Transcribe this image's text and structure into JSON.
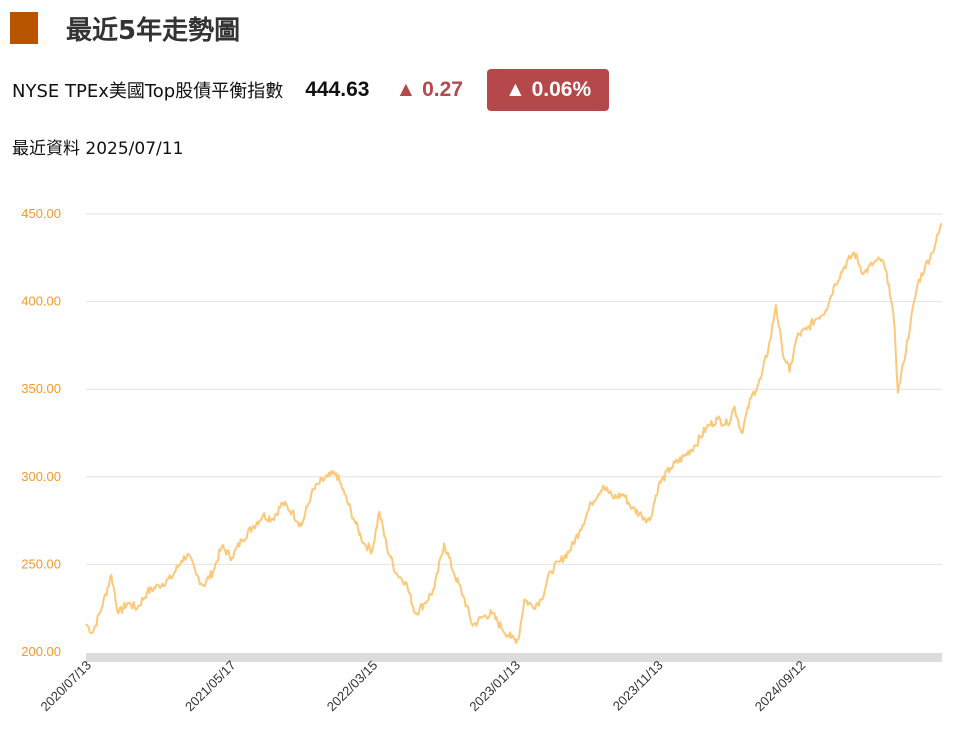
{
  "page": {
    "title": "最近5年走勢圖",
    "title_block_color": "#b85400"
  },
  "quote": {
    "name": "NYSE TPEx美國Top股債平衡指數",
    "price": "444.63",
    "change": "▲ 0.27",
    "change_pct": "▲ 0.06%",
    "up_color": "#b5484a"
  },
  "updated": {
    "label": "最近資料",
    "date": "2025/07/11"
  },
  "chart_data": {
    "type": "line",
    "title": "",
    "xlabel": "",
    "ylabel": "",
    "ylim": [
      200,
      450
    ],
    "y_ticks": [
      "200.00",
      "250.00",
      "300.00",
      "350.00",
      "400.00",
      "450.00"
    ],
    "x_tick_labels": [
      "2020/07/13",
      "2021/05/17",
      "2022/03/15",
      "2023/01/13",
      "2023/11/13",
      "2024/09/12"
    ],
    "x_tick_dates": [
      "2020-07-13",
      "2021-05-17",
      "2022-03-15",
      "2023-01-13",
      "2023-11-13",
      "2024-09-12"
    ],
    "x_range": [
      "2020-07-13",
      "2025-07-11"
    ],
    "line_color": "#fcc97a",
    "tick_label_color": "#f39a2a",
    "grid": true,
    "series": [
      {
        "points": [
          [
            "2020-07-13",
            216
          ],
          [
            "2020-07-27",
            211
          ],
          [
            "2020-08-15",
            225
          ],
          [
            "2020-09-05",
            244
          ],
          [
            "2020-09-20",
            222
          ],
          [
            "2020-10-10",
            228
          ],
          [
            "2020-10-30",
            225
          ],
          [
            "2020-11-20",
            234
          ],
          [
            "2020-12-15",
            238
          ],
          [
            "2021-01-10",
            242
          ],
          [
            "2021-02-01",
            252
          ],
          [
            "2021-02-15",
            256
          ],
          [
            "2021-03-05",
            244
          ],
          [
            "2021-03-20",
            238
          ],
          [
            "2021-04-10",
            246
          ],
          [
            "2021-04-28",
            260
          ],
          [
            "2021-05-20",
            254
          ],
          [
            "2021-06-10",
            264
          ],
          [
            "2021-07-05",
            272
          ],
          [
            "2021-07-25",
            278
          ],
          [
            "2021-08-15",
            276
          ],
          [
            "2021-09-05",
            285
          ],
          [
            "2021-09-25",
            280
          ],
          [
            "2021-10-15",
            272
          ],
          [
            "2021-11-05",
            290
          ],
          [
            "2021-11-20",
            296
          ],
          [
            "2021-12-10",
            300
          ],
          [
            "2021-12-28",
            302
          ],
          [
            "2022-01-15",
            290
          ],
          [
            "2022-02-05",
            275
          ],
          [
            "2022-02-25",
            262
          ],
          [
            "2022-03-15",
            258
          ],
          [
            "2022-03-30",
            280
          ],
          [
            "2022-04-15",
            260
          ],
          [
            "2022-05-05",
            245
          ],
          [
            "2022-05-25",
            240
          ],
          [
            "2022-06-15",
            222
          ],
          [
            "2022-07-05",
            228
          ],
          [
            "2022-07-25",
            236
          ],
          [
            "2022-08-15",
            262
          ],
          [
            "2022-09-05",
            245
          ],
          [
            "2022-09-25",
            232
          ],
          [
            "2022-10-15",
            215
          ],
          [
            "2022-11-05",
            220
          ],
          [
            "2022-11-25",
            222
          ],
          [
            "2022-12-15",
            214
          ],
          [
            "2023-01-05",
            208
          ],
          [
            "2023-01-20",
            207
          ],
          [
            "2023-02-02",
            230
          ],
          [
            "2023-02-20",
            226
          ],
          [
            "2023-03-10",
            230
          ],
          [
            "2023-03-30",
            246
          ],
          [
            "2023-04-20",
            252
          ],
          [
            "2023-05-10",
            258
          ],
          [
            "2023-06-01",
            270
          ],
          [
            "2023-06-25",
            285
          ],
          [
            "2023-07-20",
            295
          ],
          [
            "2023-08-10",
            288
          ],
          [
            "2023-09-01",
            290
          ],
          [
            "2023-09-20",
            282
          ],
          [
            "2023-10-10",
            278
          ],
          [
            "2023-10-27",
            275
          ],
          [
            "2023-11-15",
            295
          ],
          [
            "2023-12-10",
            305
          ],
          [
            "2024-01-10",
            312
          ],
          [
            "2024-02-01",
            318
          ],
          [
            "2024-02-25",
            328
          ],
          [
            "2024-03-20",
            333
          ],
          [
            "2024-04-10",
            330
          ],
          [
            "2024-04-25",
            340
          ],
          [
            "2024-05-10",
            325
          ],
          [
            "2024-05-30",
            345
          ],
          [
            "2024-06-20",
            356
          ],
          [
            "2024-07-10",
            378
          ],
          [
            "2024-07-22",
            398
          ],
          [
            "2024-08-05",
            372
          ],
          [
            "2024-08-20",
            360
          ],
          [
            "2024-09-05",
            380
          ],
          [
            "2024-09-25",
            384
          ],
          [
            "2024-10-15",
            390
          ],
          [
            "2024-11-05",
            395
          ],
          [
            "2024-11-25",
            410
          ],
          [
            "2024-12-15",
            420
          ],
          [
            "2025-01-05",
            428
          ],
          [
            "2025-01-25",
            416
          ],
          [
            "2025-02-15",
            422
          ],
          [
            "2025-03-05",
            424
          ],
          [
            "2025-03-20",
            410
          ],
          [
            "2025-04-01",
            385
          ],
          [
            "2025-04-08",
            348
          ],
          [
            "2025-04-20",
            365
          ],
          [
            "2025-05-05",
            388
          ],
          [
            "2025-05-20",
            410
          ],
          [
            "2025-06-05",
            420
          ],
          [
            "2025-06-20",
            428
          ],
          [
            "2025-07-11",
            444.63
          ]
        ]
      }
    ]
  }
}
